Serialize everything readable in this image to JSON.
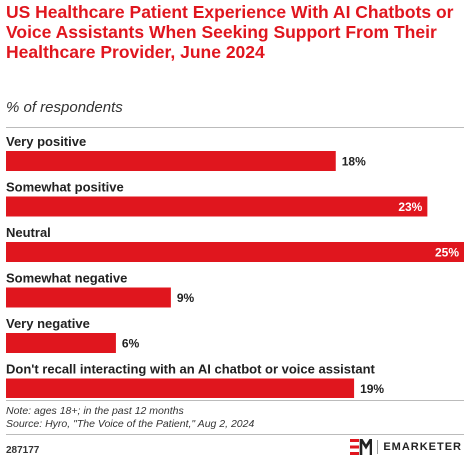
{
  "header": {
    "title": "US Healthcare Patient Experience With AI Chatbots or Voice Assistants When Seeking Support From Their Healthcare Provider, June 2024",
    "subtitle": "% of respondents"
  },
  "chart_data": {
    "type": "bar",
    "orientation": "horizontal",
    "categories": [
      "Very positive",
      "Somewhat positive",
      "Neutral",
      "Somewhat negative",
      "Very negative",
      "Don't recall interacting with an AI chatbot or voice assistant"
    ],
    "values": [
      18,
      23,
      25,
      9,
      6,
      19
    ],
    "value_labels": [
      "18%",
      "23%",
      "25%",
      "9%",
      "6%",
      "19%"
    ],
    "xlim": [
      0,
      25
    ],
    "grid": false,
    "bar_color": "#e0161e"
  },
  "footer": {
    "note": "Note: ages 18+; in the past 12 months",
    "source": "Source: Hyro, \"The Voice of the Patient,\" Aug 2, 2024",
    "chart_id": "287177",
    "brand_name": "EMARKETER"
  },
  "colors": {
    "accent": "#e0161e",
    "text": "#222222"
  }
}
